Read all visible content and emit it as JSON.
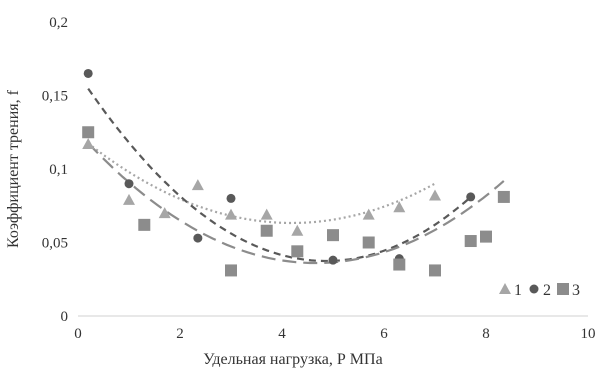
{
  "chart_data": {
    "type": "scatter",
    "xlabel": "Удельная нагрузка, Р МПа",
    "ylabel": "Коэффициент трения, f",
    "xlim": [
      0,
      10
    ],
    "ylim": [
      0,
      0.2
    ],
    "x_ticks": [
      "0",
      "2",
      "4",
      "6",
      "8",
      "10"
    ],
    "y_ticks": [
      "0",
      "0,05",
      "0,1",
      "0,15",
      "0,2"
    ],
    "grid": false,
    "legend_position": "bottom-right",
    "series": [
      {
        "name": "1",
        "marker": "triangle",
        "color": "#a6a6a6",
        "points": [
          [
            0.2,
            0.117
          ],
          [
            1.0,
            0.079
          ],
          [
            1.7,
            0.07
          ],
          [
            2.35,
            0.089
          ],
          [
            3.0,
            0.069
          ],
          [
            3.7,
            0.069
          ],
          [
            4.3,
            0.058
          ],
          [
            5.7,
            0.069
          ],
          [
            6.3,
            0.074
          ],
          [
            7.0,
            0.082
          ]
        ],
        "trend": {
          "style": "dotted",
          "coeffs": [
            0.123,
            -0.0285,
            0.0034
          ]
        }
      },
      {
        "name": "2",
        "marker": "circle",
        "color": "#595959",
        "points": [
          [
            0.2,
            0.165
          ],
          [
            1.0,
            0.09
          ],
          [
            2.35,
            0.053
          ],
          [
            3.0,
            0.08
          ],
          [
            5.0,
            0.038
          ],
          [
            6.3,
            0.039
          ],
          [
            7.7,
            0.081
          ]
        ],
        "trend": {
          "style": "dashed",
          "coeffs": [
            0.165,
            -0.0525,
            0.0054
          ]
        }
      },
      {
        "name": "3",
        "marker": "square",
        "color": "#8c8c8c",
        "points": [
          [
            0.2,
            0.125
          ],
          [
            1.3,
            0.062
          ],
          [
            3.0,
            0.031
          ],
          [
            3.7,
            0.058
          ],
          [
            4.3,
            0.044
          ],
          [
            5.0,
            0.055
          ],
          [
            5.7,
            0.05
          ],
          [
            6.3,
            0.035
          ],
          [
            7.0,
            0.031
          ],
          [
            7.7,
            0.051
          ],
          [
            8.0,
            0.054
          ],
          [
            8.35,
            0.081
          ]
        ],
        "trend": {
          "style": "long-dash",
          "coeffs": [
            0.125,
            -0.0382,
            0.0041
          ]
        }
      }
    ]
  }
}
